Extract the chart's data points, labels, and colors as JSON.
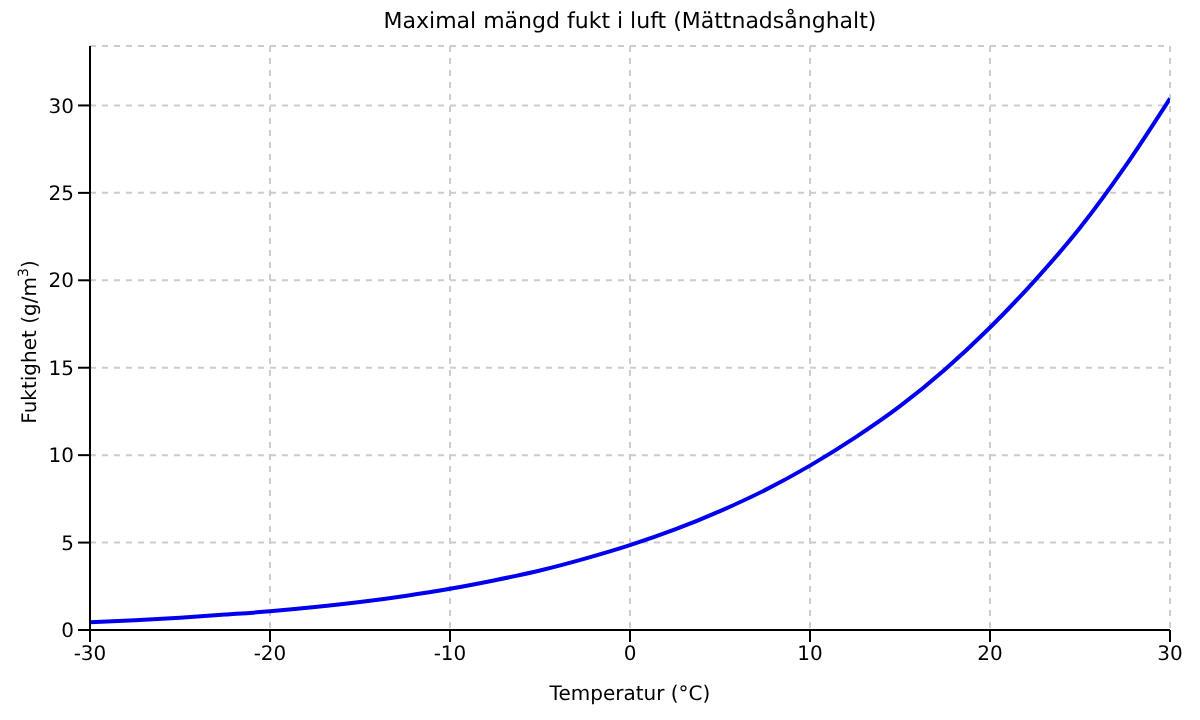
{
  "chart_data": {
    "type": "line",
    "title": "Maximal mängd fukt i luft (Mättnadsånghalt)",
    "xlabel": "Temperatur (°C)",
    "ylabel": "Fuktighet (g/m$^{3}$)",
    "x": [
      -30,
      -27.5,
      -25,
      -22.5,
      -20,
      -17.5,
      -15,
      -12.5,
      -10,
      -7.5,
      -5,
      -2.5,
      0,
      2.5,
      5,
      7.5,
      10,
      12.5,
      15,
      17.5,
      20,
      22.5,
      25,
      27.5,
      30
    ],
    "series": [
      {
        "color": "#0000ee",
        "values": [
          0.45,
          0.56,
          0.7,
          0.88,
          1.07,
          1.31,
          1.6,
          1.95,
          2.36,
          2.85,
          3.4,
          4.08,
          4.85,
          5.75,
          6.8,
          8.0,
          9.4,
          11.0,
          12.8,
          14.9,
          17.3,
          20.0,
          23.0,
          26.5,
          30.4
        ]
      }
    ],
    "xlim": [
      -30,
      30
    ],
    "xticks": [
      -30,
      -20,
      -10,
      0,
      10,
      20,
      30
    ],
    "ylim": [
      0,
      33.4
    ],
    "yticks": [
      0,
      5,
      10,
      15,
      20,
      25,
      30
    ],
    "grid": true,
    "legend": false,
    "marker": "none",
    "line_style": "solid"
  }
}
